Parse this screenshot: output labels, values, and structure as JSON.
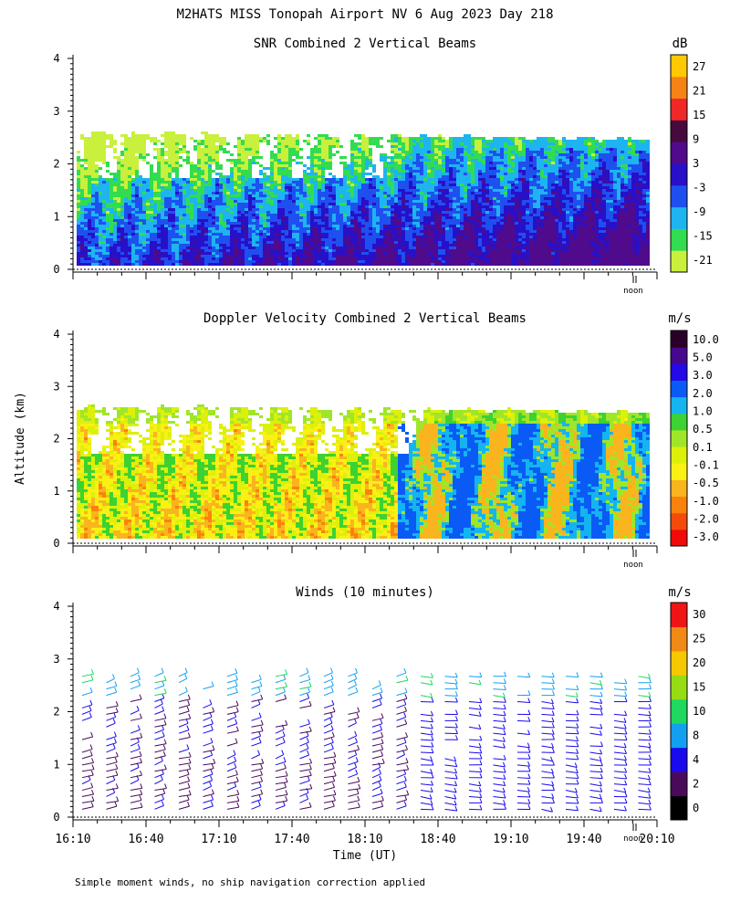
{
  "figure": {
    "title": "M2HATS MISS Tonopah Airport NV   6 Aug 2023 Day 218",
    "ylabel": "Altitude (km)",
    "xlabel": "Time (UT)",
    "footnote": "Simple moment winds, no ship navigation correction applied",
    "noon_label": "noon"
  },
  "chart_data": [
    {
      "type": "heatmap",
      "title": "SNR Combined 2 Vertical Beams",
      "units": "dB",
      "colorbar_labels": [
        "27",
        "21",
        "15",
        "9",
        "3",
        "-3",
        "-9",
        "-15",
        "-21"
      ],
      "colorbar_colors": [
        "#c8f03c",
        "#32dc50",
        "#1eb4f0",
        "#1e50f0",
        "#2810c8",
        "#500a8c",
        "#460a3c",
        "#f02828",
        "#f58214",
        "#ffc800"
      ],
      "ylim": [
        0,
        4
      ],
      "yticks": [
        "0",
        "1",
        "2",
        "3",
        "4"
      ],
      "xlim": [
        16.1667,
        20.1667
      ]
    },
    {
      "type": "heatmap",
      "title": "Doppler Velocity Combined 2 Vertical Beams",
      "units": "m/s",
      "colorbar_labels": [
        "10.0",
        "5.0",
        "3.0",
        "2.0",
        "1.0",
        "0.5",
        "0.1",
        "-0.1",
        "-0.5",
        "-1.0",
        "-2.0",
        "-3.0"
      ],
      "colorbar_colors": [
        "#f00a0a",
        "#f54b0a",
        "#fa820a",
        "#fab41e",
        "#faf014",
        "#dcf00a",
        "#a0e628",
        "#3cd232",
        "#14b4f0",
        "#0a5af5",
        "#230ae6",
        "#46088c",
        "#2a0028"
      ],
      "ylim": [
        0,
        4
      ],
      "yticks": [
        "0",
        "1",
        "2",
        "3",
        "4"
      ],
      "xlim": [
        16.1667,
        20.1667
      ]
    },
    {
      "type": "scatter",
      "title": "Winds (10 minutes)",
      "units": "m/s",
      "colorbar_labels": [
        "30",
        "25",
        "20",
        "15",
        "10",
        "8",
        "4",
        "2",
        "0"
      ],
      "colorbar_colors": [
        "#000000",
        "#4a0a5a",
        "#1a0aee",
        "#14a0f0",
        "#1ed860",
        "#96dc14",
        "#f5c800",
        "#f08a14",
        "#f01414"
      ],
      "ylim": [
        0,
        4
      ],
      "yticks": [
        "0",
        "1",
        "2",
        "3",
        "4"
      ],
      "xlim": [
        16.1667,
        20.1667
      ],
      "xticks": [
        "16:10",
        "16:40",
        "17:10",
        "17:40",
        "18:10",
        "18:40",
        "19:10",
        "19:40",
        "20:10"
      ]
    }
  ]
}
